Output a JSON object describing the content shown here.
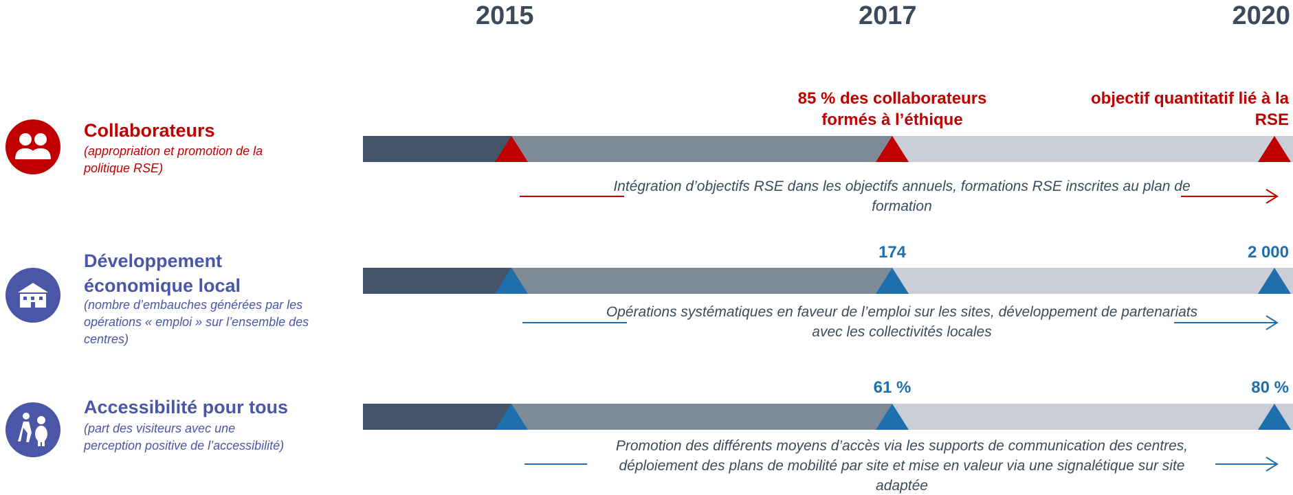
{
  "years": [
    "2015",
    "2017",
    "2020"
  ],
  "rows": [
    {
      "title": "Collaborateurs",
      "subtitle": "(appropriation et promotion de la politique RSE)",
      "milestones": [
        "85 % des collaborateurs formés à l’éthique",
        "objectif quantitatif lié à la RSE"
      ],
      "description": "Intégration d’objectifs RSE dans les objectifs annuels, formations RSE inscrites au plan de formation"
    },
    {
      "title": "Développement économique local",
      "subtitle": "(nombre d’embauches générées par les opérations « emploi » sur l’ensemble des centres)",
      "milestones": [
        "174",
        "2 000"
      ],
      "description": "Opérations systématiques en faveur de l’emploi sur les sites, développement de partenariats avec les collectivités locales"
    },
    {
      "title": "Accessibilité pour tous",
      "subtitle": "(part des visiteurs avec une perception positive de l’accessibilité)",
      "milestones": [
        "61 %",
        "80 %"
      ],
      "description": "Promotion des différents moyens d’accès via les supports de communication des centres, déploiement des plans de mobilité par site et mise en valeur via une signalétique sur site adaptée"
    }
  ]
}
